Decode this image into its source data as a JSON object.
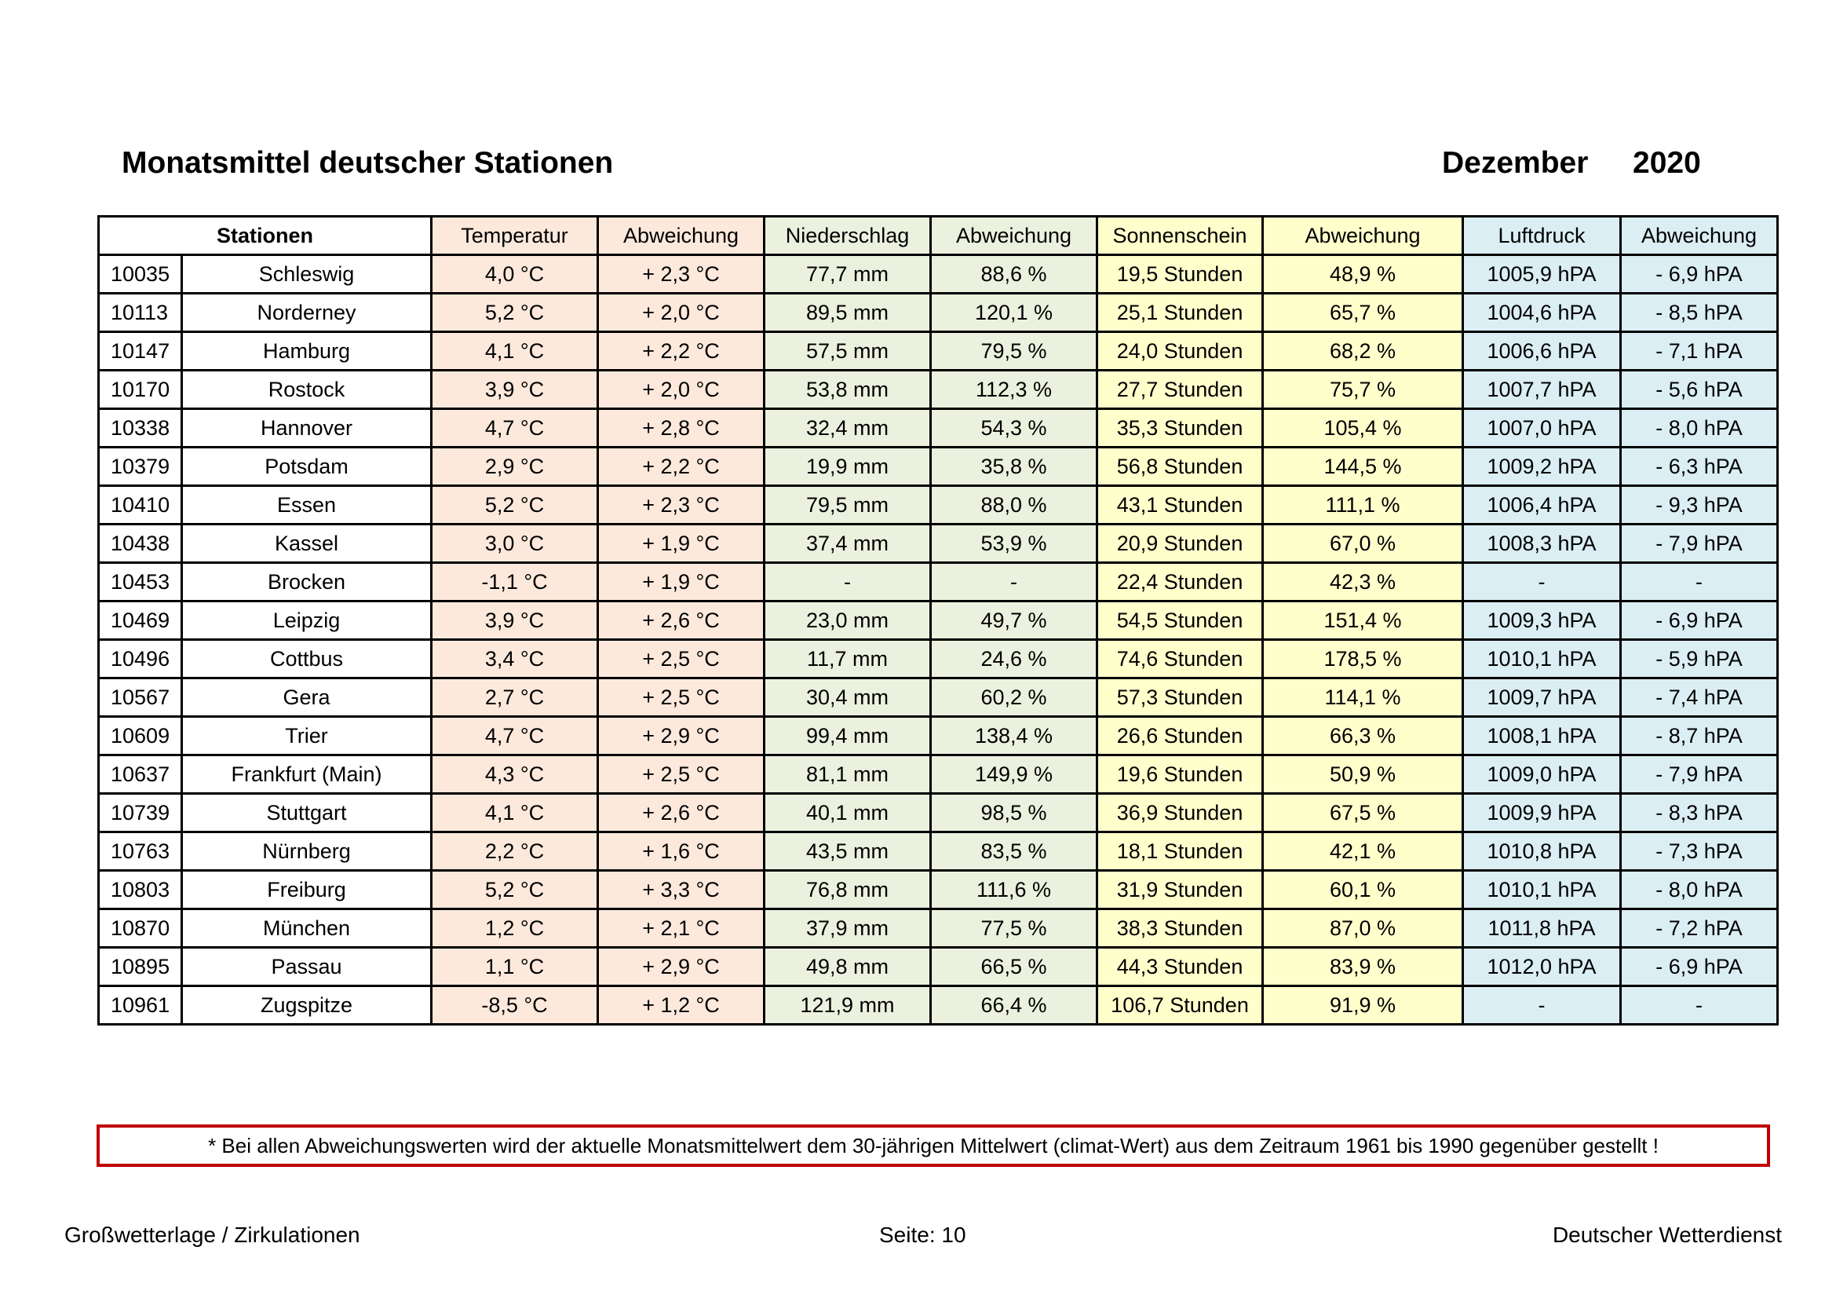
{
  "header": {
    "title": "Monatsmittel deutscher Stationen",
    "month": "Dezember",
    "year": "2020"
  },
  "colors": {
    "temperature": "#fce9dc",
    "precipitation": "#ebf1de",
    "sunshine": "#ffffcc",
    "pressure": "#dbeef4",
    "note_border": "#c00000"
  },
  "table": {
    "columns": [
      "Stationen",
      "Temperatur",
      "Abweichung",
      "Niederschlag",
      "Abweichung",
      "Sonnenschein",
      "Abweichung",
      "Luftdruck",
      "Abweichung"
    ],
    "rows": [
      [
        "10035",
        "Schleswig",
        "4,0 °C",
        "+ 2,3 °C",
        "77,7 mm",
        "88,6 %",
        "19,5 Stunden",
        "48,9 %",
        "1005,9 hPA",
        "- 6,9 hPA"
      ],
      [
        "10113",
        "Norderney",
        "5,2 °C",
        "+ 2,0 °C",
        "89,5 mm",
        "120,1 %",
        "25,1 Stunden",
        "65,7 %",
        "1004,6 hPA",
        "- 8,5 hPA"
      ],
      [
        "10147",
        "Hamburg",
        "4,1 °C",
        "+ 2,2 °C",
        "57,5 mm",
        "79,5 %",
        "24,0 Stunden",
        "68,2 %",
        "1006,6 hPA",
        "- 7,1 hPA"
      ],
      [
        "10170",
        "Rostock",
        "3,9 °C",
        "+ 2,0 °C",
        "53,8 mm",
        "112,3 %",
        "27,7 Stunden",
        "75,7 %",
        "1007,7 hPA",
        "- 5,6 hPA"
      ],
      [
        "10338",
        "Hannover",
        "4,7 °C",
        "+ 2,8 °C",
        "32,4 mm",
        "54,3 %",
        "35,3 Stunden",
        "105,4 %",
        "1007,0 hPA",
        "- 8,0 hPA"
      ],
      [
        "10379",
        "Potsdam",
        "2,9 °C",
        "+ 2,2 °C",
        "19,9 mm",
        "35,8 %",
        "56,8 Stunden",
        "144,5 %",
        "1009,2 hPA",
        "- 6,3 hPA"
      ],
      [
        "10410",
        "Essen",
        "5,2 °C",
        "+ 2,3 °C",
        "79,5 mm",
        "88,0 %",
        "43,1 Stunden",
        "111,1 %",
        "1006,4 hPA",
        "- 9,3 hPA"
      ],
      [
        "10438",
        "Kassel",
        "3,0 °C",
        "+ 1,9 °C",
        "37,4 mm",
        "53,9 %",
        "20,9 Stunden",
        "67,0 %",
        "1008,3 hPA",
        "- 7,9 hPA"
      ],
      [
        "10453",
        "Brocken",
        "-1,1 °C",
        "+ 1,9 °C",
        "-",
        "-",
        "22,4 Stunden",
        "42,3 %",
        "-",
        "-"
      ],
      [
        "10469",
        "Leipzig",
        "3,9 °C",
        "+ 2,6 °C",
        "23,0 mm",
        "49,7 %",
        "54,5 Stunden",
        "151,4 %",
        "1009,3 hPA",
        "- 6,9 hPA"
      ],
      [
        "10496",
        "Cottbus",
        "3,4 °C",
        "+ 2,5 °C",
        "11,7 mm",
        "24,6 %",
        "74,6 Stunden",
        "178,5 %",
        "1010,1 hPA",
        "- 5,9 hPA"
      ],
      [
        "10567",
        "Gera",
        "2,7 °C",
        "+ 2,5 °C",
        "30,4 mm",
        "60,2 %",
        "57,3 Stunden",
        "114,1 %",
        "1009,7 hPA",
        "- 7,4 hPA"
      ],
      [
        "10609",
        "Trier",
        "4,7 °C",
        "+ 2,9 °C",
        "99,4 mm",
        "138,4 %",
        "26,6 Stunden",
        "66,3 %",
        "1008,1 hPA",
        "- 8,7 hPA"
      ],
      [
        "10637",
        "Frankfurt (Main)",
        "4,3 °C",
        "+ 2,5 °C",
        "81,1 mm",
        "149,9 %",
        "19,6 Stunden",
        "50,9 %",
        "1009,0 hPA",
        "- 7,9 hPA"
      ],
      [
        "10739",
        "Stuttgart",
        "4,1 °C",
        "+ 2,6 °C",
        "40,1 mm",
        "98,5 %",
        "36,9 Stunden",
        "67,5 %",
        "1009,9 hPA",
        "- 8,3 hPA"
      ],
      [
        "10763",
        "Nürnberg",
        "2,2 °C",
        "+ 1,6 °C",
        "43,5 mm",
        "83,5 %",
        "18,1 Stunden",
        "42,1 %",
        "1010,8 hPA",
        "- 7,3 hPA"
      ],
      [
        "10803",
        "Freiburg",
        "5,2 °C",
        "+ 3,3 °C",
        "76,8 mm",
        "111,6 %",
        "31,9 Stunden",
        "60,1 %",
        "1010,1 hPA",
        "- 8,0 hPA"
      ],
      [
        "10870",
        "München",
        "1,2 °C",
        "+ 2,1 °C",
        "37,9 mm",
        "77,5 %",
        "38,3 Stunden",
        "87,0 %",
        "1011,8 hPA",
        "- 7,2 hPA"
      ],
      [
        "10895",
        "Passau",
        "1,1 °C",
        "+ 2,9 °C",
        "49,8 mm",
        "66,5 %",
        "44,3 Stunden",
        "83,9 %",
        "1012,0 hPA",
        "- 6,9 hPA"
      ],
      [
        "10961",
        "Zugspitze",
        "-8,5 °C",
        "+ 1,2 °C",
        "121,9 mm",
        "66,4 %",
        "106,7 Stunden",
        "91,9 %",
        "-",
        "-"
      ]
    ]
  },
  "note": "* Bei allen Abweichungswerten wird der aktuelle Monatsmittelwert dem 30-jährigen Mittelwert (climat-Wert) aus dem Zeitraum 1961 bis 1990 gegenüber gestellt !",
  "footer": {
    "left": "Großwetterlage / Zirkulationen",
    "center": "Seite: 10",
    "right": "Deutscher Wetterdienst"
  }
}
